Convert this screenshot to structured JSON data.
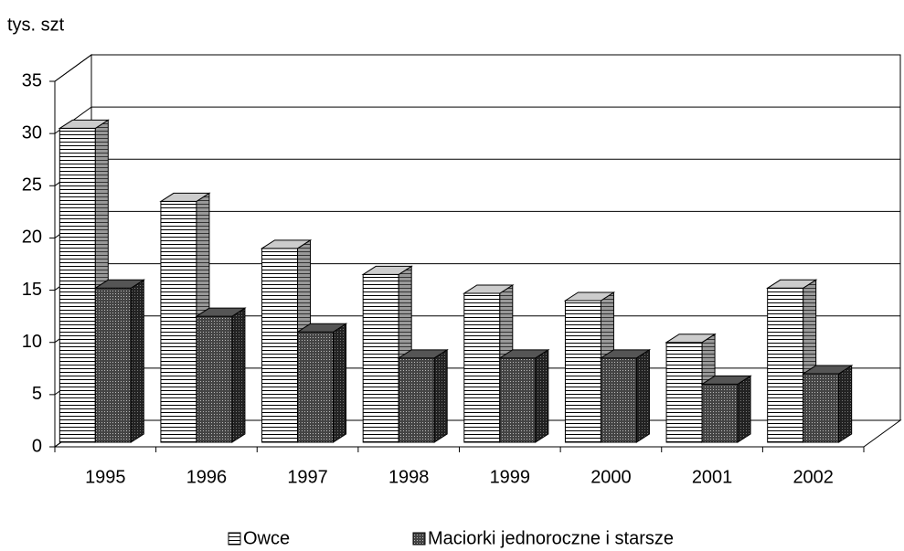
{
  "chart_data": {
    "type": "bar3d",
    "y_label": "tys. szt",
    "categories": [
      "1995",
      "1996",
      "1997",
      "1998",
      "1999",
      "2000",
      "2001",
      "2002"
    ],
    "series": [
      {
        "name": "Owce",
        "color": "#ffffff",
        "values": [
          30.5,
          23.5,
          19,
          16.5,
          14.7,
          14,
          10,
          15.2
        ]
      },
      {
        "name": "Maciorki jednoroczne i starsze",
        "color": "#333333",
        "values": [
          15.2,
          12.5,
          11,
          8.5,
          8.5,
          8.5,
          6,
          7
        ]
      }
    ],
    "ylim": [
      0,
      35
    ],
    "yticks": [
      0,
      5,
      10,
      15,
      20,
      25,
      30,
      35
    ],
    "grid": true,
    "legend": "bottom"
  }
}
